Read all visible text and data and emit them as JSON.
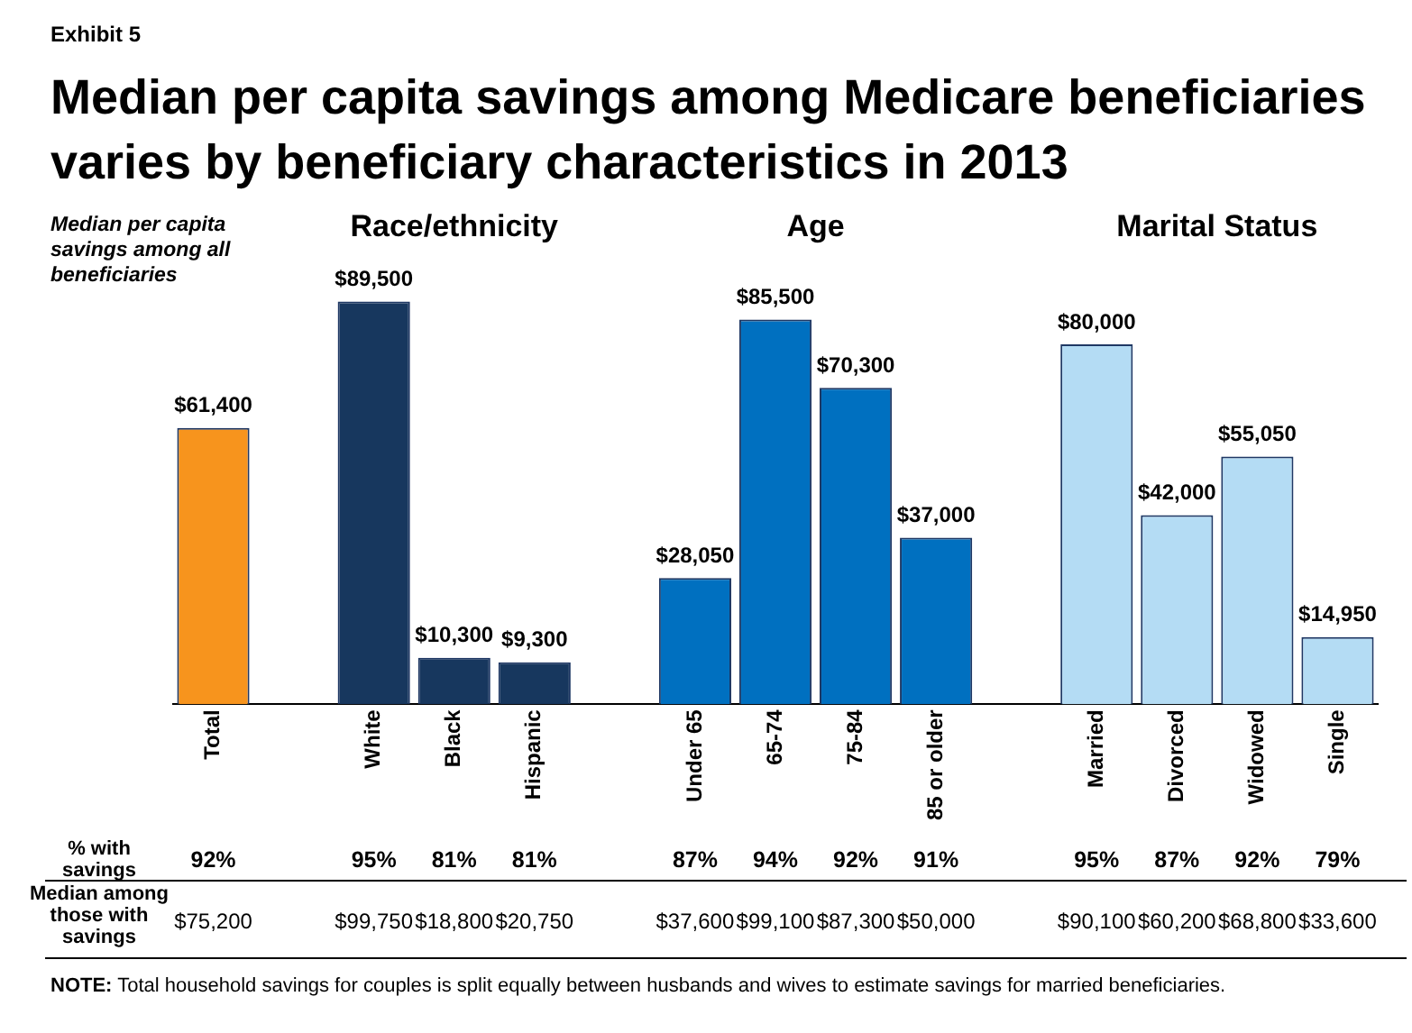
{
  "chart_data": {
    "type": "bar",
    "title": "Median per capita savings among Medicare beneficiaries varies by beneficiary characteristics in 2013",
    "categories": [
      "Total",
      null,
      "White",
      "Black",
      "Hispanic",
      null,
      "Under 65",
      "65-74",
      "75-84",
      "85 or older",
      null,
      "Married",
      "Divorced",
      "Widowed",
      "Single"
    ],
    "values": [
      61400,
      null,
      89500,
      10300,
      9300,
      null,
      28050,
      85500,
      70300,
      37000,
      null,
      80000,
      42000,
      55050,
      14950
    ],
    "colors": [
      "#f7941d",
      "#ffffff",
      "#17375e",
      "#17375e",
      "#17375e",
      "#ffffff",
      "#0070c0",
      "#0070c0",
      "#0070c0",
      "#0070c0",
      "#ffffff",
      "#b4dcf4",
      "#b4dcf4",
      "#b4dcf4",
      "#b4dcf4"
    ],
    "value_labels": [
      "$61,400",
      null,
      "$89,500",
      "$10,300",
      "$9,300",
      null,
      "$28,050",
      "$85,500",
      "$70,300",
      "$37,000",
      null,
      "$80,000",
      "$42,000",
      "$55,050",
      "$14,950"
    ],
    "tick_labels": "x",
    "grid": false,
    "legend": false,
    "annotations": [
      "Exhibit 5",
      "Median per capita savings among all beneficiaries",
      "Race/ethnicity",
      "Age",
      "Marital Status",
      "% with savings",
      "92%",
      "95%",
      "81%",
      "81%",
      "87%",
      "94%",
      "92%",
      "91%",
      "95%",
      "87%",
      "92%",
      "79%",
      "Median among those with savings",
      "$75,200",
      "$99,750",
      "$18,800",
      "$20,750",
      "$37,600",
      "$99,100",
      "$87,300",
      "$50,000",
      "$90,100",
      "$60,200",
      "$68,800",
      "$33,600",
      "NOTE:  Total household savings for couples is split equally between husbands and wives  to estimate savings for married beneficiaries."
    ]
  }
}
